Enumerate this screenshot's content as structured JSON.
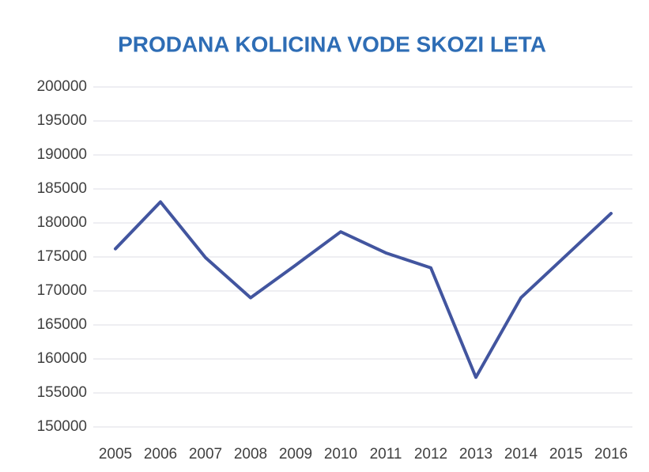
{
  "chart_data": {
    "type": "line",
    "title": "PRODANA KOLICINA VODE SKOZI LETA",
    "categories": [
      "2005",
      "2006",
      "2007",
      "2008",
      "2009",
      "2010",
      "2011",
      "2012",
      "2013",
      "2014",
      "2015",
      "2016"
    ],
    "values": [
      176200,
      183100,
      174900,
      169000,
      173800,
      178700,
      175600,
      173400,
      157300,
      169000,
      175200,
      181400
    ],
    "color": "#42559f",
    "ylim": [
      150000,
      200000
    ],
    "yticks": [
      150000,
      155000,
      160000,
      165000,
      170000,
      175000,
      180000,
      185000,
      190000,
      195000,
      200000
    ],
    "grid": true
  }
}
